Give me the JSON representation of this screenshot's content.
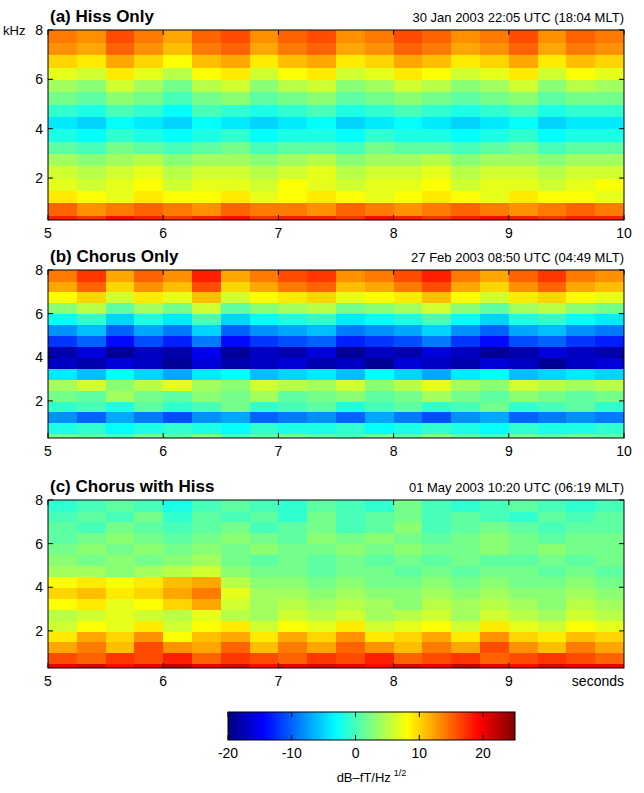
{
  "chart_data": [
    {
      "type": "heatmap",
      "title": "(a) Hiss Only",
      "subtitle": "30 Jan 2003  22:05 UTC (18:04 MLT)",
      "ylabel": "kHz",
      "x": [
        5,
        5.25,
        5.5,
        5.75,
        6,
        6.25,
        6.5,
        6.75,
        7,
        7.25,
        7.5,
        7.75,
        8,
        8.25,
        8.5,
        8.75,
        9,
        9.25,
        9.5,
        9.75
      ],
      "y": [
        0,
        0.5,
        1,
        1.5,
        2,
        2.5,
        3,
        3.5,
        4,
        4.5,
        5,
        5.5,
        6,
        6.5,
        7,
        7.5
      ],
      "cells": [
        [
          18,
          17,
          19,
          18,
          17,
          18,
          19,
          17,
          18,
          18,
          17,
          19,
          18,
          17,
          18,
          19,
          18,
          17,
          18,
          18
        ],
        [
          15,
          13,
          14,
          15,
          14,
          13,
          15,
          14,
          14,
          13,
          15,
          14,
          13,
          14,
          15,
          14,
          13,
          14,
          15,
          14
        ],
        [
          9,
          8,
          7,
          9,
          8,
          8,
          9,
          7,
          8,
          9,
          8,
          7,
          8,
          9,
          8,
          7,
          9,
          8,
          8,
          7
        ],
        [
          7,
          6,
          7,
          8,
          6,
          7,
          7,
          6,
          8,
          7,
          6,
          7,
          7,
          8,
          6,
          7,
          7,
          6,
          7,
          8
        ],
        [
          6,
          5,
          6,
          7,
          5,
          6,
          6,
          5,
          6,
          7,
          5,
          6,
          6,
          7,
          5,
          6,
          6,
          5,
          6,
          6
        ],
        [
          4,
          3,
          4,
          5,
          3,
          4,
          4,
          3,
          4,
          5,
          3,
          4,
          4,
          5,
          3,
          4,
          4,
          3,
          4,
          4
        ],
        [
          1,
          0,
          2,
          1,
          0,
          1,
          2,
          0,
          1,
          1,
          0,
          2,
          1,
          1,
          0,
          1,
          2,
          0,
          1,
          1
        ],
        [
          -2,
          -3,
          -1,
          -2,
          -3,
          -2,
          -1,
          -3,
          -2,
          -2,
          -3,
          -1,
          -2,
          -2,
          -3,
          -2,
          -1,
          -3,
          -2,
          -2
        ],
        [
          -4,
          -5,
          -3,
          -4,
          -5,
          -3,
          -4,
          -5,
          -4,
          -3,
          -5,
          -4,
          -3,
          -4,
          -5,
          -4,
          -3,
          -5,
          -4,
          -4
        ],
        [
          -1,
          -2,
          0,
          -1,
          -3,
          0,
          -1,
          -2,
          -1,
          0,
          -2,
          -1,
          0,
          -1,
          -2,
          -1,
          0,
          -2,
          -1,
          -1
        ],
        [
          2,
          1,
          3,
          2,
          0,
          2,
          3,
          1,
          2,
          3,
          1,
          2,
          3,
          2,
          1,
          2,
          3,
          1,
          2,
          2
        ],
        [
          4,
          3,
          6,
          4,
          2,
          5,
          6,
          3,
          5,
          6,
          3,
          4,
          6,
          5,
          3,
          4,
          6,
          3,
          5,
          4
        ],
        [
          7,
          6,
          9,
          7,
          5,
          8,
          9,
          6,
          8,
          9,
          6,
          7,
          9,
          8,
          6,
          7,
          9,
          6,
          8,
          7
        ],
        [
          10,
          9,
          12,
          10,
          8,
          11,
          12,
          9,
          11,
          12,
          9,
          10,
          12,
          11,
          9,
          10,
          12,
          9,
          11,
          10
        ],
        [
          13,
          12,
          15,
          13,
          11,
          14,
          15,
          12,
          14,
          15,
          12,
          13,
          15,
          14,
          12,
          13,
          15,
          12,
          14,
          13
        ],
        [
          14,
          13,
          16,
          14,
          12,
          15,
          16,
          13,
          15,
          16,
          13,
          14,
          16,
          15,
          13,
          14,
          16,
          13,
          15,
          14
        ]
      ],
      "xlim": [
        5,
        10
      ],
      "ylim": [
        0.3,
        8
      ],
      "xticks": [
        5,
        6,
        7,
        8,
        9,
        10
      ],
      "yticks": [
        2,
        4,
        6,
        8
      ]
    },
    {
      "type": "heatmap",
      "title": "(b) Chorus Only",
      "subtitle": "27 Feb 2003  08:50 UTC (04:49 MLT)",
      "x": [
        5,
        5.25,
        5.5,
        5.75,
        6,
        6.25,
        6.5,
        6.75,
        7,
        7.25,
        7.5,
        7.75,
        8,
        8.25,
        8.5,
        8.75,
        9,
        9.25,
        9.5,
        9.75
      ],
      "y": [
        0,
        0.5,
        1,
        1.5,
        2,
        2.5,
        3,
        3.5,
        4,
        4.5,
        5,
        5.5,
        6,
        6.5,
        7,
        7.5
      ],
      "cells": [
        [
          2,
          1,
          0,
          2,
          1,
          3,
          0,
          1,
          2,
          1,
          0,
          2,
          1,
          3,
          1,
          0,
          2,
          1,
          2,
          1
        ],
        [
          -2,
          -1,
          -3,
          -2,
          -1,
          -2,
          -3,
          -1,
          -2,
          -2,
          -1,
          -3,
          -2,
          -1,
          -2,
          -3,
          -1,
          -2,
          -2,
          -1
        ],
        [
          -8,
          -10,
          -7,
          -9,
          -11,
          -8,
          -7,
          -10,
          -9,
          -8,
          -10,
          -7,
          -9,
          -11,
          -8,
          -7,
          -10,
          -9,
          -8,
          -9
        ],
        [
          -1,
          0,
          -2,
          1,
          -1,
          0,
          2,
          -1,
          0,
          1,
          -2,
          0,
          1,
          -1,
          0,
          2,
          -1,
          0,
          1,
          -1
        ],
        [
          2,
          1,
          4,
          2,
          1,
          3,
          2,
          4,
          1,
          2,
          3,
          1,
          2,
          4,
          2,
          1,
          3,
          2,
          1,
          2
        ],
        [
          4,
          6,
          3,
          5,
          7,
          4,
          3,
          6,
          5,
          4,
          6,
          3,
          5,
          7,
          4,
          3,
          6,
          5,
          4,
          5
        ],
        [
          -4,
          -6,
          -3,
          -5,
          -7,
          -4,
          -3,
          -6,
          -5,
          -4,
          -6,
          -3,
          -5,
          -7,
          -4,
          -3,
          -6,
          -5,
          -4,
          -5
        ],
        [
          -17,
          -18,
          -16,
          -17,
          -19,
          -16,
          -18,
          -17,
          -16,
          -18,
          -17,
          -19,
          -16,
          -17,
          -18,
          -16,
          -17,
          -19,
          -17,
          -16
        ],
        [
          -18,
          -16,
          -19,
          -17,
          -18,
          -15,
          -19,
          -17,
          -18,
          -16,
          -19,
          -17,
          -18,
          -16,
          -17,
          -19,
          -18,
          -16,
          -17,
          -18
        ],
        [
          -12,
          -10,
          -14,
          -11,
          -13,
          -9,
          -14,
          -12,
          -11,
          -10,
          -13,
          -12,
          -11,
          -9,
          -12,
          -14,
          -11,
          -10,
          -12,
          -13
        ],
        [
          -8,
          -6,
          -10,
          -7,
          -9,
          -5,
          -10,
          -8,
          -7,
          -6,
          -9,
          -8,
          -7,
          -5,
          -8,
          -10,
          -7,
          -6,
          -8,
          -9
        ],
        [
          -3,
          -1,
          -5,
          -2,
          -4,
          0,
          -5,
          -3,
          -2,
          -1,
          -4,
          -3,
          -2,
          0,
          -3,
          -5,
          -2,
          -1,
          -3,
          -4
        ],
        [
          3,
          5,
          1,
          4,
          2,
          6,
          1,
          3,
          4,
          5,
          2,
          3,
          4,
          6,
          3,
          1,
          4,
          5,
          3,
          2
        ],
        [
          8,
          10,
          6,
          9,
          7,
          11,
          6,
          8,
          9,
          10,
          7,
          8,
          9,
          11,
          8,
          6,
          9,
          10,
          8,
          7
        ],
        [
          12,
          15,
          10,
          13,
          11,
          16,
          10,
          12,
          14,
          15,
          11,
          12,
          14,
          16,
          12,
          10,
          13,
          15,
          12,
          11
        ],
        [
          14,
          17,
          12,
          15,
          13,
          18,
          12,
          14,
          16,
          17,
          13,
          14,
          16,
          18,
          14,
          12,
          15,
          17,
          14,
          13
        ]
      ],
      "xlim": [
        5,
        10
      ],
      "ylim": [
        0.3,
        8
      ],
      "xticks": [
        5,
        6,
        7,
        8,
        9,
        10
      ],
      "yticks": [
        2,
        4,
        6,
        8
      ]
    },
    {
      "type": "heatmap",
      "title": "(c) Chorus with Hiss",
      "subtitle": "01 May 2003  10:20 UTC (06:19 MLT)",
      "xlabel": "seconds",
      "x": [
        5,
        5.25,
        5.5,
        5.75,
        6,
        6.25,
        6.5,
        6.75,
        7,
        7.25,
        7.5,
        7.75,
        8,
        8.25,
        8.5,
        8.75,
        9,
        9.25,
        9.5,
        9.75
      ],
      "y": [
        0,
        0.5,
        1,
        1.5,
        2,
        2.5,
        3,
        3.5,
        4,
        4.5,
        5,
        5.5,
        6,
        6.5,
        7,
        7.5
      ],
      "cells": [
        [
          20,
          21,
          19,
          20,
          22,
          20,
          21,
          19,
          20,
          21,
          20,
          19,
          21,
          20,
          22,
          20,
          19,
          21,
          20,
          20
        ],
        [
          16,
          15,
          17,
          16,
          18,
          15,
          17,
          16,
          15,
          17,
          16,
          18,
          15,
          16,
          17,
          15,
          16,
          17,
          16,
          15
        ],
        [
          12,
          14,
          11,
          16,
          13,
          12,
          15,
          11,
          14,
          12,
          15,
          13,
          11,
          14,
          12,
          16,
          13,
          11,
          14,
          12
        ],
        [
          9,
          12,
          10,
          13,
          8,
          11,
          12,
          9,
          12,
          10,
          13,
          9,
          10,
          12,
          9,
          13,
          10,
          9,
          11,
          10
        ],
        [
          6,
          8,
          7,
          9,
          6,
          8,
          9,
          6,
          8,
          7,
          9,
          6,
          7,
          8,
          6,
          9,
          7,
          6,
          8,
          7
        ],
        [
          5,
          6,
          7,
          6,
          5,
          7,
          5,
          4,
          6,
          5,
          6,
          4,
          5,
          6,
          4,
          6,
          5,
          4,
          6,
          5
        ],
        [
          8,
          9,
          7,
          8,
          10,
          12,
          6,
          4,
          5,
          4,
          5,
          4,
          3,
          5,
          4,
          5,
          4,
          3,
          5,
          4
        ],
        [
          10,
          11,
          9,
          10,
          12,
          14,
          7,
          4,
          4,
          3,
          4,
          3,
          3,
          4,
          3,
          4,
          3,
          3,
          4,
          3
        ],
        [
          8,
          9,
          8,
          9,
          11,
          12,
          5,
          3,
          3,
          2,
          3,
          2,
          2,
          3,
          2,
          3,
          2,
          2,
          3,
          2
        ],
        [
          4,
          4,
          3,
          4,
          5,
          6,
          3,
          2,
          2,
          1,
          2,
          2,
          1,
          2,
          1,
          2,
          2,
          1,
          2,
          1
        ],
        [
          3,
          2,
          3,
          2,
          3,
          4,
          2,
          1,
          2,
          1,
          2,
          1,
          2,
          1,
          2,
          1,
          1,
          2,
          1,
          2
        ],
        [
          2,
          3,
          2,
          3,
          2,
          3,
          2,
          3,
          2,
          2,
          3,
          2,
          3,
          2,
          2,
          3,
          2,
          3,
          2,
          2
        ],
        [
          1,
          2,
          3,
          2,
          1,
          2,
          3,
          2,
          1,
          3,
          2,
          3,
          2,
          1,
          2,
          3,
          2,
          1,
          2,
          2
        ],
        [
          1,
          0,
          2,
          1,
          0,
          1,
          2,
          0,
          1,
          2,
          0,
          1,
          3,
          0,
          1,
          2,
          1,
          0,
          1,
          1
        ],
        [
          0,
          1,
          0,
          2,
          -1,
          1,
          0,
          1,
          -1,
          2,
          0,
          1,
          2,
          0,
          1,
          0,
          -1,
          1,
          0,
          1
        ],
        [
          -1,
          0,
          1,
          0,
          -2,
          0,
          1,
          0,
          -1,
          1,
          0,
          -1,
          2,
          0,
          -1,
          0,
          1,
          0,
          -1,
          0
        ]
      ],
      "xlim": [
        5,
        10
      ],
      "ylim": [
        0.3,
        8
      ],
      "xticks": [
        5,
        6,
        7,
        8,
        9
      ],
      "yticks": [
        2,
        4,
        6,
        8
      ]
    }
  ],
  "colorbar": {
    "range": [
      -20,
      25
    ],
    "ticks": [
      -20,
      -10,
      0,
      10,
      20
    ],
    "label": "dB–fT/Hz",
    "label_exponent": "1/2"
  }
}
